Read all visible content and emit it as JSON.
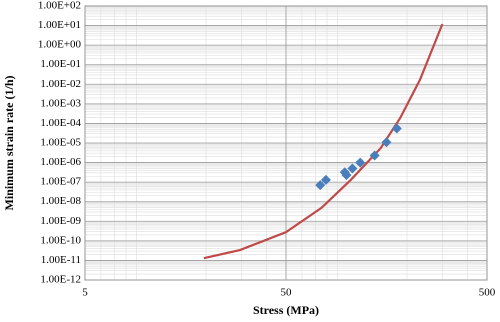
{
  "chart_data": {
    "type": "scatter",
    "x_label": "Stress (MPa)",
    "y_label": "Minimum strain rate (1/h)",
    "x_log": true,
    "y_log": true,
    "grid": true,
    "xlim": [
      5,
      500
    ],
    "xticks": [
      5,
      50,
      500
    ],
    "ylim": [
      1e-12,
      100
    ],
    "yticks": [
      {
        "value": 1e-12,
        "label": "1.00E-12"
      },
      {
        "value": 1e-11,
        "label": "1.00E-11"
      },
      {
        "value": 1e-10,
        "label": "1.00E-10"
      },
      {
        "value": 1e-09,
        "label": "1.00E-09"
      },
      {
        "value": 1e-08,
        "label": "1.00E-08"
      },
      {
        "value": 1e-07,
        "label": "1.00E-07"
      },
      {
        "value": 1e-06,
        "label": "1.00E-06"
      },
      {
        "value": 1e-05,
        "label": "1.00E-05"
      },
      {
        "value": 0.0001,
        "label": "1.00E-04"
      },
      {
        "value": 0.001,
        "label": "1.00E-03"
      },
      {
        "value": 0.01,
        "label": "1.00E-02"
      },
      {
        "value": 0.1,
        "label": "1.00E-01"
      },
      {
        "value": 1,
        "label": "1.00E+00"
      },
      {
        "value": 10,
        "label": "1.00E+01"
      },
      {
        "value": 100,
        "label": "1.00E+02"
      }
    ],
    "series": [
      {
        "type": "scatter",
        "color": "#4a7ebb",
        "x": [
          74,
          79,
          98,
          100,
          107,
          117,
          138,
          158,
          178
        ],
        "values": [
          7e-08,
          1.3e-07,
          3.2e-07,
          2.3e-07,
          5e-07,
          1e-06,
          2.3e-06,
          1.1e-05,
          5.5e-05
        ]
      },
      {
        "type": "line",
        "color": "#be4b48",
        "x": [
          19.5,
          29.5,
          50,
          75,
          105,
          148,
          185,
          232,
          300
        ],
        "values": [
          1.3e-11,
          3.4e-11,
          2.8e-10,
          4.8e-09,
          1.3e-07,
          5.5e-06,
          0.00019,
          0.017,
          12
        ]
      }
    ]
  }
}
